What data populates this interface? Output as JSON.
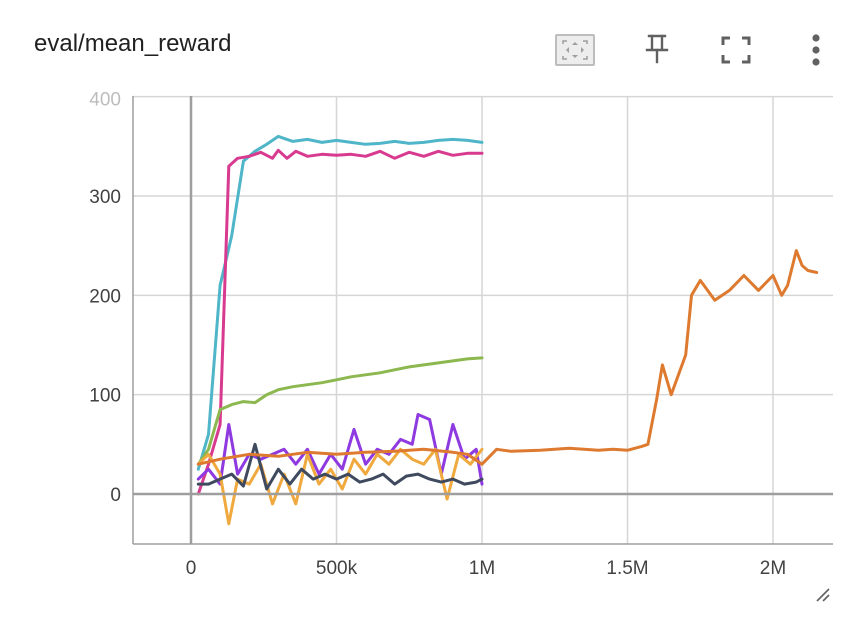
{
  "card": {
    "title": "eval/mean_reward"
  },
  "toolbar": {
    "icons": [
      "fit-domain-icon",
      "pin-icon",
      "fullscreen-icon",
      "more-vert-icon"
    ]
  },
  "colors": {
    "axis": "#9e9e9e",
    "grid": "#d6d6d6",
    "zero_line": "#9e9e9e"
  },
  "chart_data": {
    "type": "line",
    "title": "eval/mean_reward",
    "xlabel": "",
    "ylabel": "",
    "xlim": [
      -200000,
      2200000
    ],
    "ylim": [
      -50,
      400
    ],
    "x_ticks": [
      0,
      500000,
      1000000,
      1500000,
      2000000
    ],
    "x_tick_labels": [
      "0",
      "500k",
      "1M",
      "1.5M",
      "2M"
    ],
    "y_ticks": [
      0,
      100,
      200,
      300,
      400
    ],
    "y_tick_labels": [
      "0",
      "100",
      "200",
      "300",
      "400"
    ],
    "grid": true,
    "legend": "none",
    "series": [
      {
        "color": "#4fb5c8",
        "x": [
          25000,
          60000,
          100000,
          140000,
          180000,
          220000,
          260000,
          300000,
          350000,
          400000,
          450000,
          500000,
          550000,
          600000,
          650000,
          700000,
          750000,
          800000,
          850000,
          900000,
          950000,
          1000000
        ],
        "y": [
          25,
          60,
          210,
          260,
          335,
          345,
          352,
          360,
          355,
          357,
          354,
          356,
          354,
          352,
          353,
          355,
          353,
          354,
          356,
          357,
          356,
          354
        ]
      },
      {
        "color": "#d83a8f",
        "x": [
          25000,
          60000,
          100000,
          130000,
          160000,
          200000,
          240000,
          280000,
          300000,
          330000,
          360000,
          400000,
          450000,
          500000,
          550000,
          600000,
          650000,
          700000,
          750000,
          800000,
          850000,
          900000,
          950000,
          1000000
        ],
        "y": [
          0,
          30,
          70,
          330,
          338,
          340,
          344,
          338,
          346,
          338,
          345,
          340,
          342,
          341,
          342,
          340,
          345,
          338,
          344,
          340,
          345,
          341,
          343,
          343
        ]
      },
      {
        "color": "#8cb84f",
        "x": [
          25000,
          60000,
          100000,
          140000,
          180000,
          220000,
          260000,
          300000,
          350000,
          400000,
          450000,
          500000,
          550000,
          600000,
          650000,
          700000,
          750000,
          800000,
          850000,
          900000,
          950000,
          1000000
        ],
        "y": [
          30,
          45,
          85,
          90,
          93,
          92,
          100,
          105,
          108,
          110,
          112,
          115,
          118,
          120,
          122,
          125,
          128,
          130,
          132,
          134,
          136,
          137
        ]
      },
      {
        "color": "#8e3ae0",
        "x": [
          25000,
          60000,
          100000,
          130000,
          160000,
          200000,
          240000,
          280000,
          320000,
          360000,
          400000,
          440000,
          480000,
          520000,
          560000,
          600000,
          640000,
          680000,
          720000,
          760000,
          780000,
          820000,
          860000,
          900000,
          940000,
          980000,
          1000000
        ],
        "y": [
          15,
          25,
          10,
          70,
          20,
          40,
          35,
          40,
          45,
          30,
          45,
          20,
          40,
          25,
          65,
          30,
          45,
          40,
          55,
          50,
          80,
          75,
          20,
          70,
          35,
          45,
          10
        ]
      },
      {
        "color": "#f0a93e",
        "x": [
          25000,
          60000,
          100000,
          130000,
          160000,
          200000,
          240000,
          280000,
          320000,
          360000,
          400000,
          440000,
          480000,
          520000,
          560000,
          600000,
          640000,
          680000,
          720000,
          760000,
          800000,
          840000,
          880000,
          920000,
          960000,
          1000000
        ],
        "y": [
          30,
          40,
          20,
          -30,
          15,
          10,
          30,
          -10,
          20,
          -10,
          40,
          10,
          25,
          5,
          35,
          20,
          40,
          30,
          45,
          35,
          30,
          45,
          -5,
          40,
          30,
          45
        ]
      },
      {
        "color": "#3f4a5e",
        "x": [
          25000,
          60000,
          100000,
          140000,
          180000,
          220000,
          260000,
          300000,
          340000,
          380000,
          420000,
          460000,
          500000,
          540000,
          580000,
          620000,
          660000,
          700000,
          740000,
          780000,
          820000,
          860000,
          900000,
          940000,
          980000,
          1000000
        ],
        "y": [
          10,
          10,
          15,
          20,
          8,
          50,
          5,
          25,
          10,
          25,
          15,
          20,
          15,
          20,
          12,
          15,
          20,
          10,
          18,
          20,
          15,
          12,
          15,
          10,
          12,
          15
        ]
      },
      {
        "color": "#de7a2f",
        "x": [
          25000,
          100000,
          200000,
          300000,
          400000,
          500000,
          600000,
          700000,
          800000,
          900000,
          950000,
          1000000,
          1050000,
          1100000,
          1200000,
          1300000,
          1400000,
          1450000,
          1500000,
          1550000,
          1570000,
          1600000,
          1620000,
          1650000,
          1700000,
          1720000,
          1750000,
          1800000,
          1850000,
          1900000,
          1950000,
          2000000,
          2030000,
          2050000,
          2080000,
          2100000,
          2120000,
          2150000
        ],
        "y": [
          30,
          35,
          40,
          38,
          42,
          40,
          42,
          43,
          45,
          42,
          40,
          30,
          45,
          43,
          44,
          46,
          44,
          45,
          44,
          48,
          50,
          95,
          130,
          100,
          140,
          200,
          215,
          195,
          205,
          220,
          205,
          220,
          200,
          210,
          245,
          230,
          225,
          223
        ]
      }
    ]
  }
}
